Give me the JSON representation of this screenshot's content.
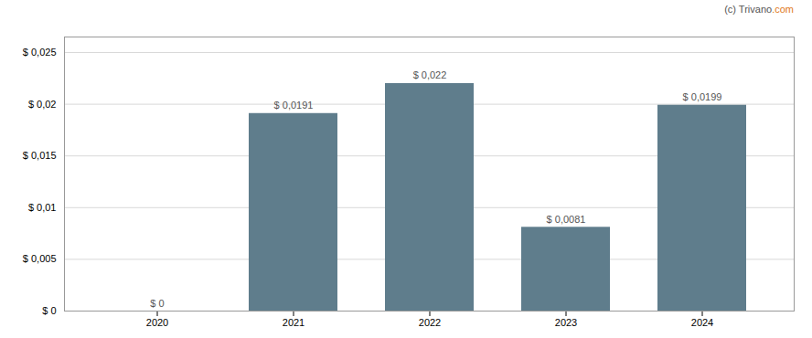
{
  "chart_data": {
    "type": "bar",
    "categories": [
      "2020",
      "2021",
      "2022",
      "2023",
      "2024"
    ],
    "values": [
      0.0,
      0.0191,
      0.022,
      0.0081,
      0.0199
    ],
    "value_labels": [
      "$ 0",
      "$ 0,0191",
      "$ 0,022",
      "$ 0,0081",
      "$ 0,0199"
    ],
    "data_labels": true,
    "color": "#5f7d8c",
    "ylim": [
      0,
      0.0265
    ],
    "yticks": [
      {
        "value": 0,
        "label": "$ 0"
      },
      {
        "value": 0.005,
        "label": "$ 0,005"
      },
      {
        "value": 0.01,
        "label": "$ 0,01"
      },
      {
        "value": 0.015,
        "label": "$ 0,015"
      },
      {
        "value": 0.02,
        "label": "$ 0,02"
      },
      {
        "value": 0.025,
        "label": "$ 0,025"
      }
    ],
    "grid": true,
    "annotations": [
      {
        "text": "(c) Trivano",
        "color": "#555555"
      },
      {
        "text": ".com",
        "color": "#e07820"
      }
    ]
  }
}
